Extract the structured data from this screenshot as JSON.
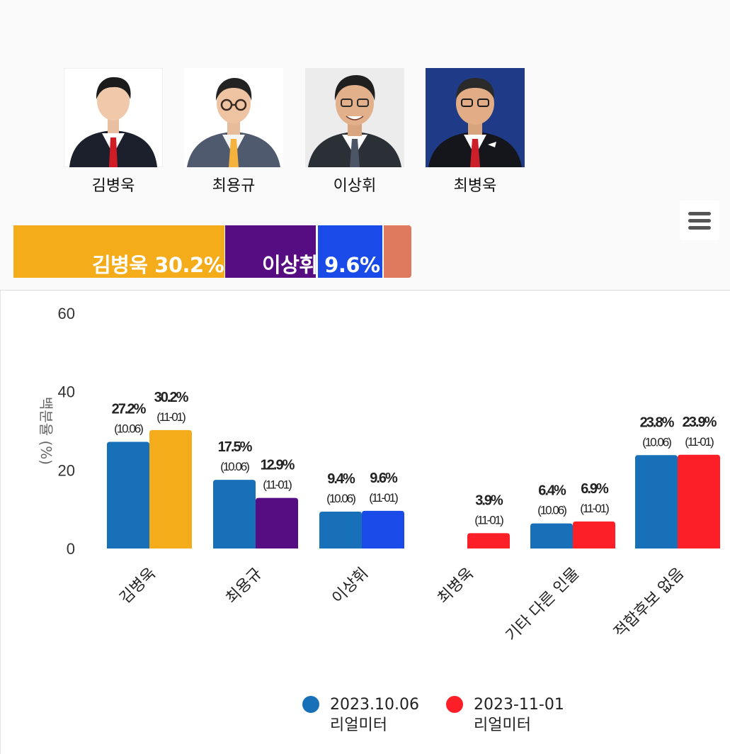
{
  "candidates": [
    {
      "name": "김병욱",
      "photo": "candidate-photo-1"
    },
    {
      "name": "최용규",
      "photo": "candidate-photo-2"
    },
    {
      "name": "이상휘",
      "photo": "candidate-photo-3"
    },
    {
      "name": "최병욱",
      "photo": "candidate-photo-4"
    }
  ],
  "menu_icon": "hamburger-menu-icon",
  "stacked_bar": {
    "segments": [
      {
        "value": 30.2,
        "color": "#f4ac1b"
      },
      {
        "value": 12.9,
        "color": "#560d82"
      },
      {
        "value": 9.6,
        "color": "#1a4be8"
      },
      {
        "value": 3.9,
        "color": "#e07a5f"
      }
    ],
    "labels": [
      "김병욱 30.2%",
      "이상휘 9.6%"
    ]
  },
  "chart_data": {
    "type": "bar",
    "ylabel": "백분율 (%)",
    "ylim": [
      0,
      60
    ],
    "yticks": [
      "0",
      "20",
      "40",
      "60"
    ],
    "categories": [
      "김병욱",
      "최용규",
      "이상휘",
      "최병욱",
      "기타 다른 인물",
      "적합후보 없음"
    ],
    "series": [
      {
        "name": "2023.10.06 리얼미터",
        "color": "#1770b8",
        "values": [
          27.2,
          17.5,
          9.4,
          null,
          6.4,
          23.8
        ],
        "labels": [
          "27.2%",
          "17.5%",
          "9.4%",
          "",
          "6.4%",
          "23.8%"
        ],
        "date_label": "(10.06)"
      },
      {
        "name": "2023-11-01 리얼미터",
        "colors": [
          "#f4ac1b",
          "#560d82",
          "#1a4be8",
          "#fc1f28",
          "#fc1f28",
          "#fc1f28"
        ],
        "values": [
          30.2,
          12.9,
          9.6,
          3.9,
          6.9,
          23.9
        ],
        "labels": [
          "30.2%",
          "12.9%",
          "9.6%",
          "3.9%",
          "6.9%",
          "23.9%"
        ],
        "date_label": "(11-01)"
      }
    ],
    "legend": [
      {
        "line1": "2023.10.06",
        "line2": "리얼미터",
        "color": "#1770b8"
      },
      {
        "line1": "2023-11-01",
        "line2": "리얼미터",
        "color": "#fc1f28"
      }
    ]
  }
}
